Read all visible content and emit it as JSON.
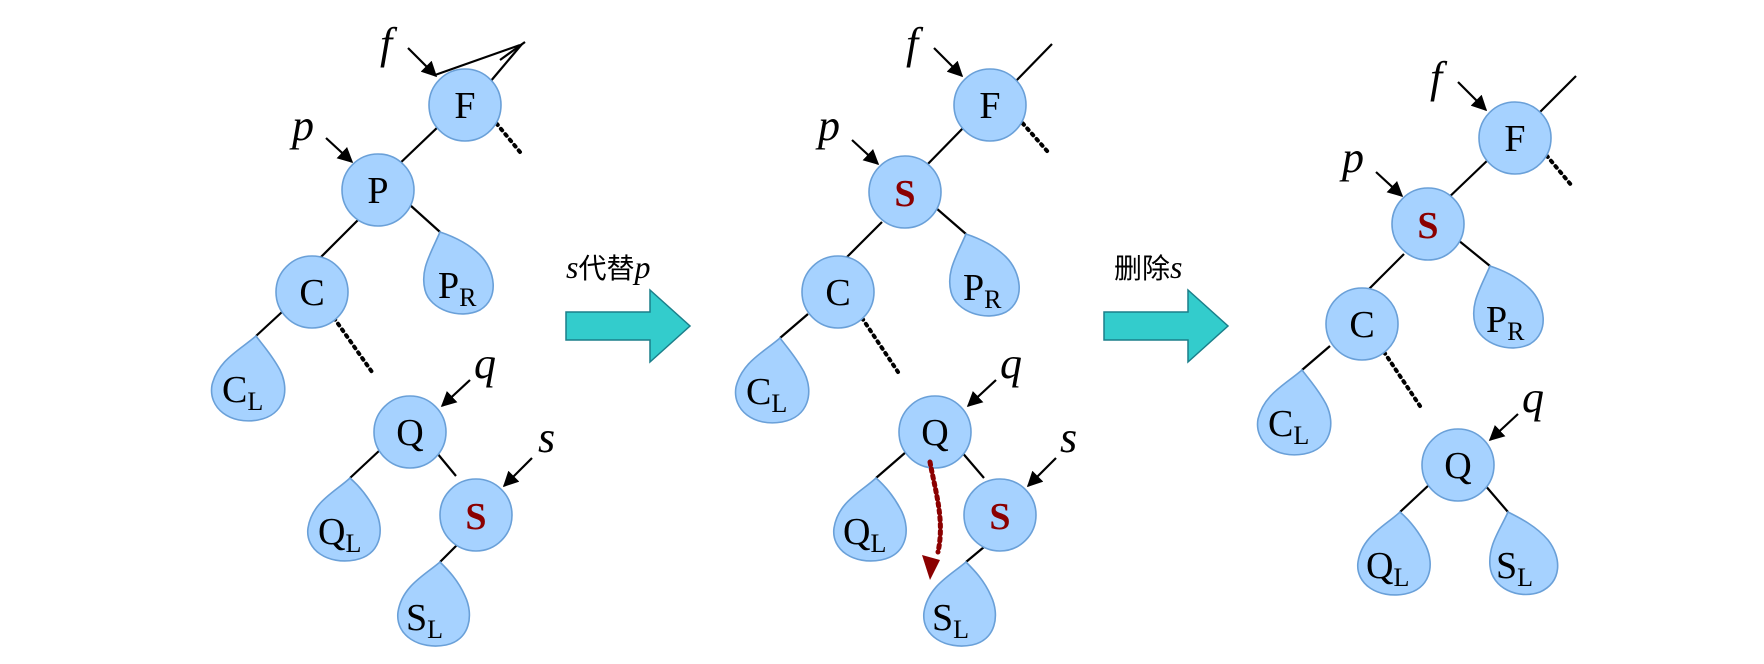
{
  "labels": {
    "F": "F",
    "P": "P",
    "C": "C",
    "Q": "Q",
    "S": "S",
    "PR_main": "P",
    "PR_sub": "R",
    "CL_main": "C",
    "CL_sub": "L",
    "QL_main": "Q",
    "QL_sub": "L",
    "SL_main": "S",
    "SL_sub": "L"
  },
  "pointers": {
    "f": "f",
    "p": "p",
    "q": "q",
    "s": "s"
  },
  "steps": [
    {
      "part1": "s",
      "part2": "代替",
      "part3": "p"
    },
    {
      "part1": "删除",
      "part2": "s"
    }
  ],
  "colors": {
    "node": "#a6d2ff",
    "highlight": "#8b0000",
    "arrow": "#33cccc"
  }
}
